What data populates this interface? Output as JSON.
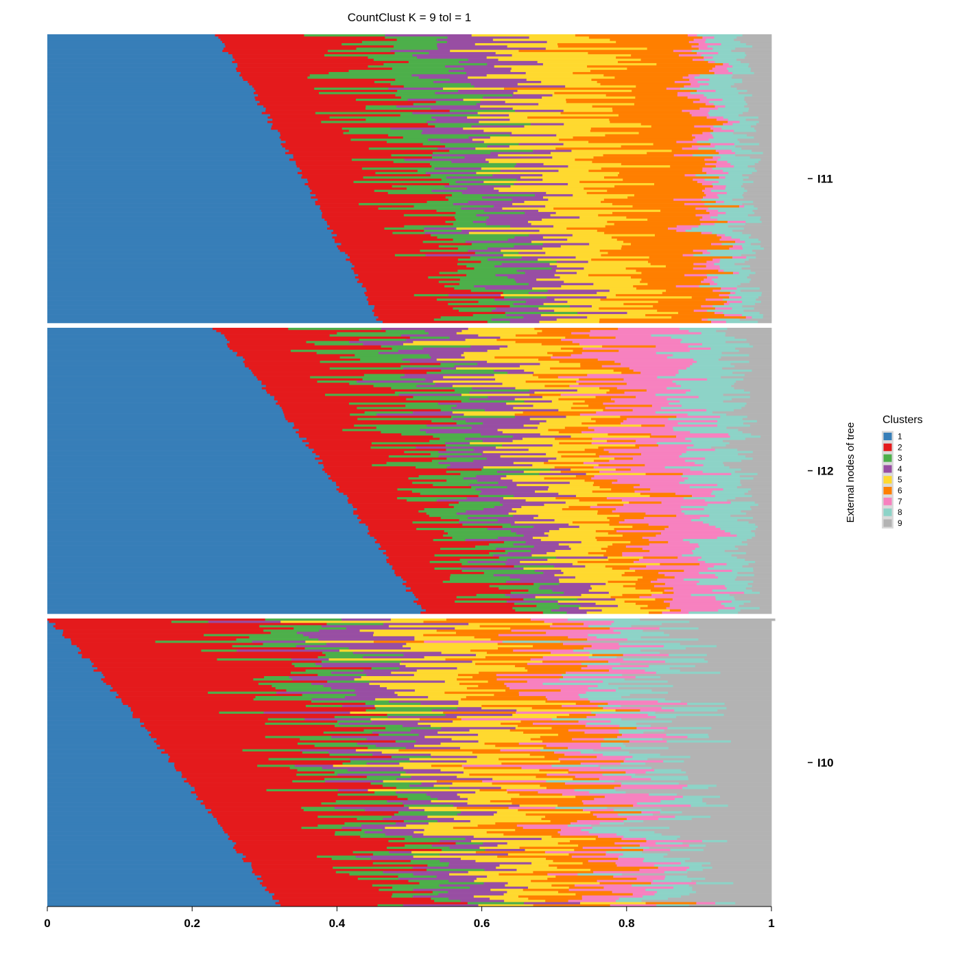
{
  "chart_data": {
    "type": "bar",
    "orientation": "horizontal-stacked",
    "title": "CountClust K =  9 tol =  1",
    "xlabel": "",
    "ylabel": "External nodes of tree",
    "xlim": [
      0,
      1
    ],
    "x_ticks": [
      "0",
      "0.2",
      "0.4",
      "0.6",
      "0.8",
      "1"
    ],
    "grid": false,
    "legend": {
      "title": "Clusters",
      "placement": "right",
      "items": [
        {
          "label": "1",
          "color": "#377eb8"
        },
        {
          "label": "2",
          "color": "#e41a1c"
        },
        {
          "label": "3",
          "color": "#4daf4a"
        },
        {
          "label": "4",
          "color": "#984ea3"
        },
        {
          "label": "5",
          "color": "#ffd92f"
        },
        {
          "label": "6",
          "color": "#ff7f00"
        },
        {
          "label": "7",
          "color": "#f781bf"
        },
        {
          "label": "8",
          "color": "#8dd3c7"
        },
        {
          "label": "9",
          "color": "#b3b3b3"
        }
      ]
    },
    "note_on_values": "approximate mean cluster proportions per panel; each panel is a stack of many individual sample bars sorted by cluster-1 share",
    "panels": [
      {
        "label": "I11",
        "samples": 130,
        "cluster1_range": [
          0.23,
          0.46
        ],
        "mean_proportions": [
          0.37,
          0.15,
          0.09,
          0.07,
          0.11,
          0.12,
          0.02,
          0.04,
          0.03
        ]
      },
      {
        "label": "I12",
        "samples": 130,
        "cluster1_range": [
          0.23,
          0.52
        ],
        "mean_proportions": [
          0.38,
          0.15,
          0.08,
          0.07,
          0.08,
          0.05,
          0.09,
          0.06,
          0.04
        ]
      },
      {
        "label": "I10",
        "samples": 130,
        "cluster1_range": [
          0.0,
          0.32
        ],
        "mean_proportions": [
          0.18,
          0.22,
          0.07,
          0.08,
          0.1,
          0.08,
          0.07,
          0.06,
          0.14
        ]
      }
    ]
  }
}
